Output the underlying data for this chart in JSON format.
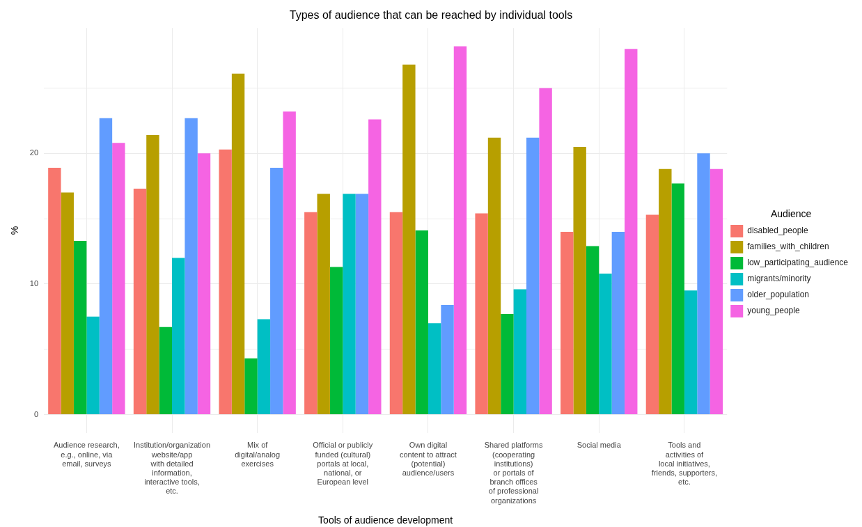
{
  "chart_data": {
    "type": "bar",
    "title": "Types of audience that can be reached by individual tools",
    "xlabel": "Tools of audience development",
    "ylabel": "%",
    "legend_title": "Audience",
    "legend": "right",
    "grid": true,
    "categories": [
      "Audience research,\ne.g., online, via\nemail, surveys",
      "Institution/organization\nwebsite/app\nwith detailed\ninformation,\ninteractive tools,\netc.",
      "Mix of\ndigital/analog\nexercises",
      "Official or publicly\nfunded (cultural)\nportals at local,\nnational, or\nEuropean level",
      "Own digital\ncontent to attract\n(potential)\naudience/users",
      "Shared platforms\n(cooperating\ninstitutions)\nor portals of\nbranch offices\nof professional\norganizations",
      "Social media",
      "Tools and\nactivities of\nlocal initiatives,\nfriends, supporters,\netc."
    ],
    "series": [
      {
        "name": "disabled_people",
        "color": "#f8766d",
        "values": [
          18.9,
          17.3,
          20.3,
          15.5,
          15.5,
          15.4,
          14.0,
          15.3
        ]
      },
      {
        "name": "families_with_children",
        "color": "#b79f00",
        "values": [
          17.0,
          21.4,
          26.1,
          16.9,
          26.8,
          21.2,
          20.5,
          18.8
        ]
      },
      {
        "name": "low_participating_audience",
        "color": "#00ba38",
        "values": [
          13.3,
          6.7,
          4.3,
          11.3,
          14.1,
          7.7,
          12.9,
          17.7
        ]
      },
      {
        "name": "migrants/minority",
        "color": "#00bfc4",
        "values": [
          7.5,
          12.0,
          7.3,
          16.9,
          7.0,
          9.6,
          10.8,
          9.5
        ]
      },
      {
        "name": "older_population",
        "color": "#619cff",
        "values": [
          22.7,
          22.7,
          18.9,
          16.9,
          8.4,
          21.2,
          14.0,
          20.0
        ]
      },
      {
        "name": "young_people",
        "color": "#f564e3",
        "values": [
          20.8,
          20.0,
          23.2,
          22.6,
          28.2,
          25.0,
          28.0,
          18.8
        ]
      }
    ],
    "ylim": [
      -1.4,
      29.6
    ],
    "yticks": [
      0,
      {
        "value": 5,
        "label": null
      },
      10,
      {
        "value": 15,
        "label": null
      },
      20,
      {
        "value": 25,
        "label": null
      }
    ]
  }
}
